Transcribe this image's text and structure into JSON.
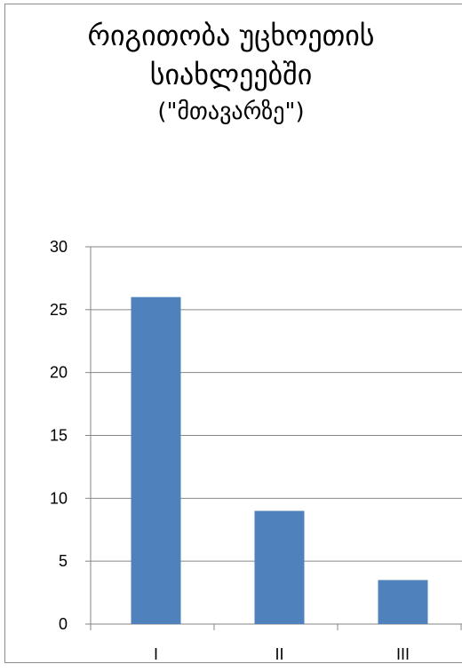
{
  "chart_data": {
    "type": "bar",
    "title_lines": [
      "რიგითობა უცხოეთის",
      "სიახლეებში",
      "(\"მთავარზე\")"
    ],
    "categories": [
      "I",
      "II",
      "III"
    ],
    "values": [
      26,
      9,
      3.5
    ],
    "ylim": [
      0,
      30
    ],
    "yticks": [
      0,
      5,
      10,
      15,
      20,
      25,
      30
    ],
    "grid": true,
    "legend": "none",
    "bar_color": "#4f81bd",
    "grid_color": "#868686",
    "axis_color": "#868686"
  }
}
